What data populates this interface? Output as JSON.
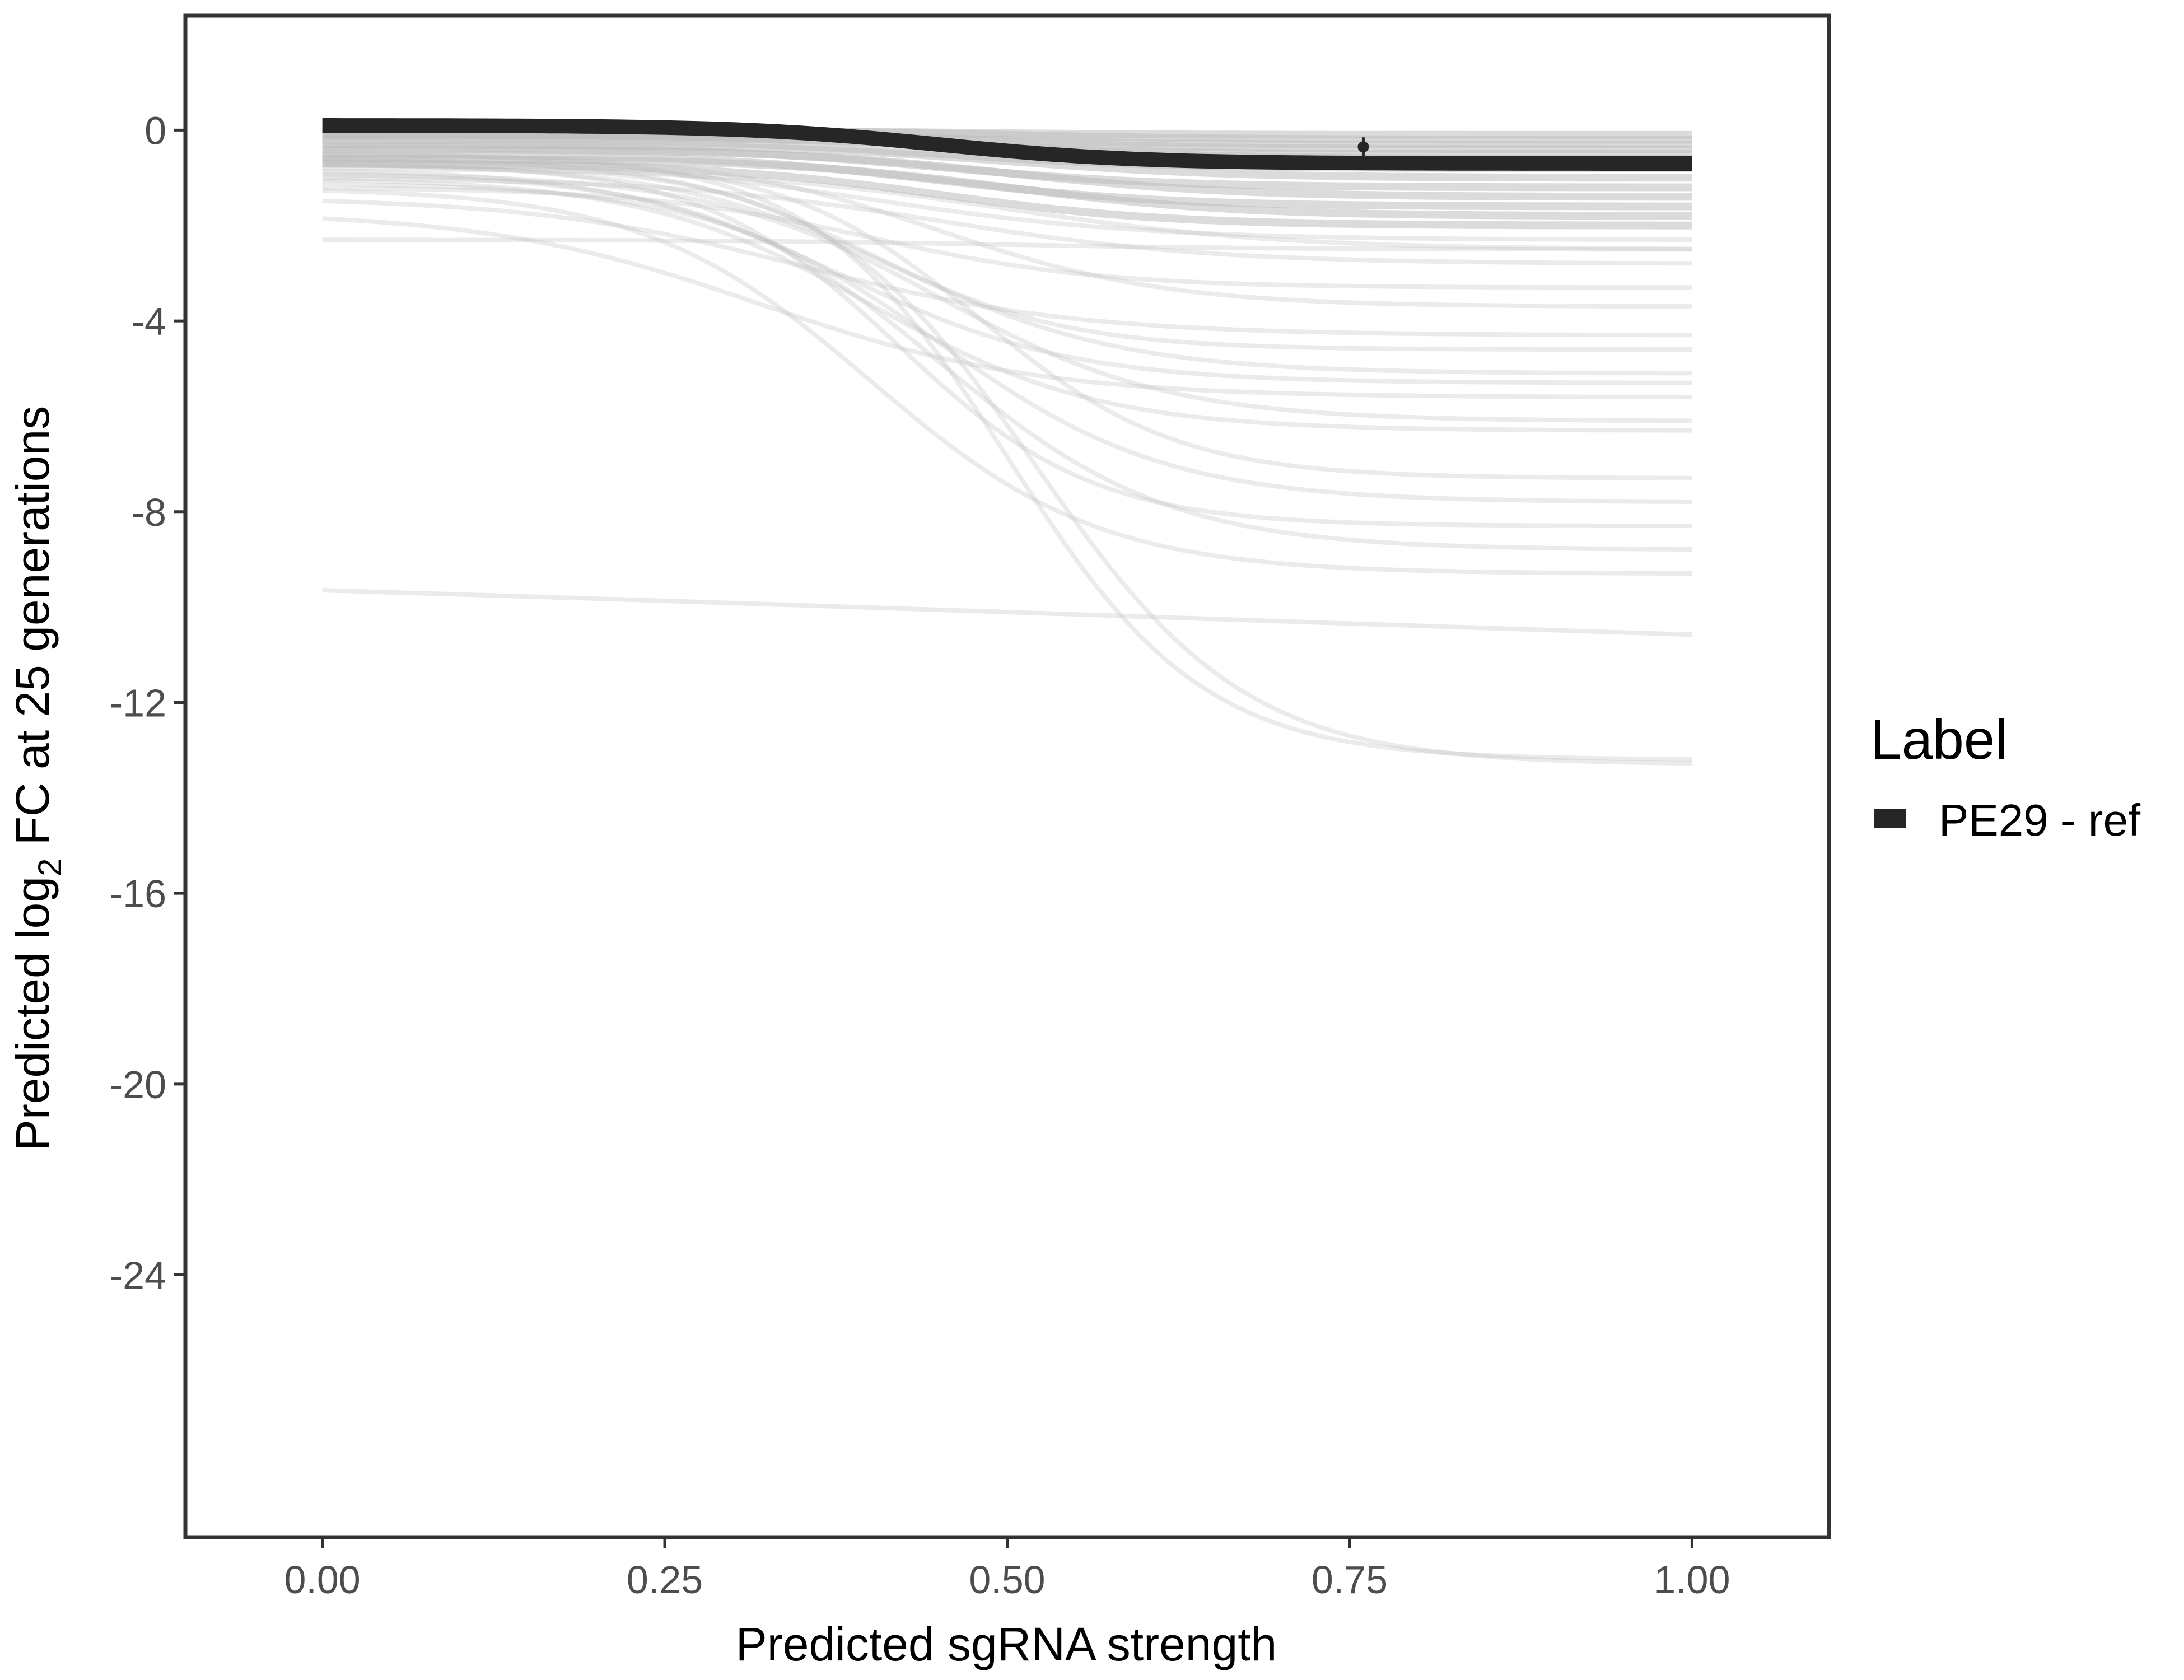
{
  "chart_data": {
    "type": "line",
    "title": "",
    "xlabel": "Predicted sgRNA strength",
    "ylabel_prefix": "Predicted  log",
    "ylabel_subscript": "2",
    "ylabel_suffix": " FC at 25 generations",
    "xlim": [
      -0.1,
      1.1
    ],
    "ylim": [
      -29.5,
      2.4
    ],
    "x_ticks": [
      0.0,
      0.25,
      0.5,
      0.75,
      1.0
    ],
    "x_tick_labels": [
      "0.00",
      "0.25",
      "0.50",
      "0.75",
      "1.00"
    ],
    "y_ticks": [
      0,
      -4,
      -8,
      -12,
      -16,
      -20,
      -24
    ],
    "y_tick_labels": [
      "0",
      "-4",
      "-8",
      "-12",
      "-16",
      "-20",
      "-24"
    ],
    "grid": false,
    "legend": {
      "title": "Label",
      "position": "right",
      "entries": [
        {
          "label": "PE29 - ref",
          "color": "#262626"
        }
      ]
    },
    "highlight_series": {
      "name": "PE29 - ref",
      "color": "#262626",
      "start": 0.1,
      "end": -0.7,
      "midpoint": 0.45,
      "steepness": 14
    },
    "highlight_point": {
      "x": 0.76,
      "y": -0.35,
      "ymin": -0.6,
      "ymax": -0.15
    },
    "background_series_color": "#bdbdbd",
    "background_series": [
      {
        "start": 0.0,
        "end": -0.1,
        "midpoint": 0.45,
        "steepness": 12
      },
      {
        "start": 0.0,
        "end": -0.2,
        "midpoint": 0.5,
        "steepness": 12
      },
      {
        "start": -0.05,
        "end": -0.3,
        "midpoint": 0.45,
        "steepness": 12
      },
      {
        "start": -0.1,
        "end": -0.4,
        "midpoint": 0.5,
        "steepness": 12
      },
      {
        "start": -0.1,
        "end": -0.5,
        "midpoint": 0.45,
        "steepness": 12
      },
      {
        "start": -0.15,
        "end": -0.6,
        "midpoint": 0.5,
        "steepness": 12
      },
      {
        "start": -0.2,
        "end": -0.8,
        "midpoint": 0.45,
        "steepness": 12
      },
      {
        "start": -0.3,
        "end": -1.0,
        "midpoint": 0.5,
        "steepness": 12
      },
      {
        "start": -0.35,
        "end": -1.2,
        "midpoint": 0.45,
        "steepness": 12
      },
      {
        "start": -0.4,
        "end": -1.4,
        "midpoint": 0.5,
        "steepness": 12
      },
      {
        "start": -0.5,
        "end": -1.6,
        "midpoint": 0.45,
        "steepness": 12
      },
      {
        "start": -0.6,
        "end": -1.8,
        "midpoint": 0.5,
        "steepness": 12
      },
      {
        "start": -0.7,
        "end": -2.0,
        "midpoint": 0.45,
        "steepness": 12
      },
      {
        "start": -0.6,
        "end": -2.3,
        "midpoint": 0.4,
        "steepness": 10
      },
      {
        "start": -0.8,
        "end": -2.5,
        "midpoint": 0.5,
        "steepness": 10
      },
      {
        "start": -1.0,
        "end": -2.8,
        "midpoint": 0.45,
        "steepness": 10
      },
      {
        "start": -2.3,
        "end": -2.5,
        "midpoint": 0.5,
        "steepness": 10
      },
      {
        "start": -1.2,
        "end": -3.3,
        "midpoint": 0.4,
        "steepness": 12
      },
      {
        "start": -0.5,
        "end": -3.7,
        "midpoint": 0.45,
        "steepness": 12
      },
      {
        "start": -1.4,
        "end": -4.3,
        "midpoint": 0.35,
        "steepness": 10
      },
      {
        "start": -0.6,
        "end": -4.6,
        "midpoint": 0.4,
        "steepness": 14
      },
      {
        "start": -0.7,
        "end": -5.1,
        "midpoint": 0.42,
        "steepness": 12
      },
      {
        "start": -0.8,
        "end": -5.3,
        "midpoint": 0.38,
        "steepness": 12
      },
      {
        "start": -1.7,
        "end": -5.6,
        "midpoint": 0.32,
        "steepness": 10
      },
      {
        "start": -0.9,
        "end": -6.1,
        "midpoint": 0.45,
        "steepness": 12
      },
      {
        "start": -1.0,
        "end": -6.3,
        "midpoint": 0.4,
        "steepness": 12
      },
      {
        "start": -0.6,
        "end": -7.3,
        "midpoint": 0.48,
        "steepness": 14
      },
      {
        "start": -1.1,
        "end": -7.8,
        "midpoint": 0.45,
        "steepness": 12
      },
      {
        "start": -0.7,
        "end": -8.3,
        "midpoint": 0.42,
        "steepness": 14
      },
      {
        "start": -0.9,
        "end": -8.8,
        "midpoint": 0.45,
        "steepness": 12
      },
      {
        "start": -1.2,
        "end": -9.3,
        "midpoint": 0.4,
        "steepness": 12
      },
      {
        "start": -0.5,
        "end": -13.2,
        "midpoint": 0.5,
        "steepness": 14
      },
      {
        "start": -0.7,
        "end": -13.3,
        "midpoint": 0.52,
        "steepness": 13
      },
      {
        "start": -8.6,
        "end": -11.8,
        "midpoint": 0.6,
        "steepness": 1.2
      }
    ]
  }
}
